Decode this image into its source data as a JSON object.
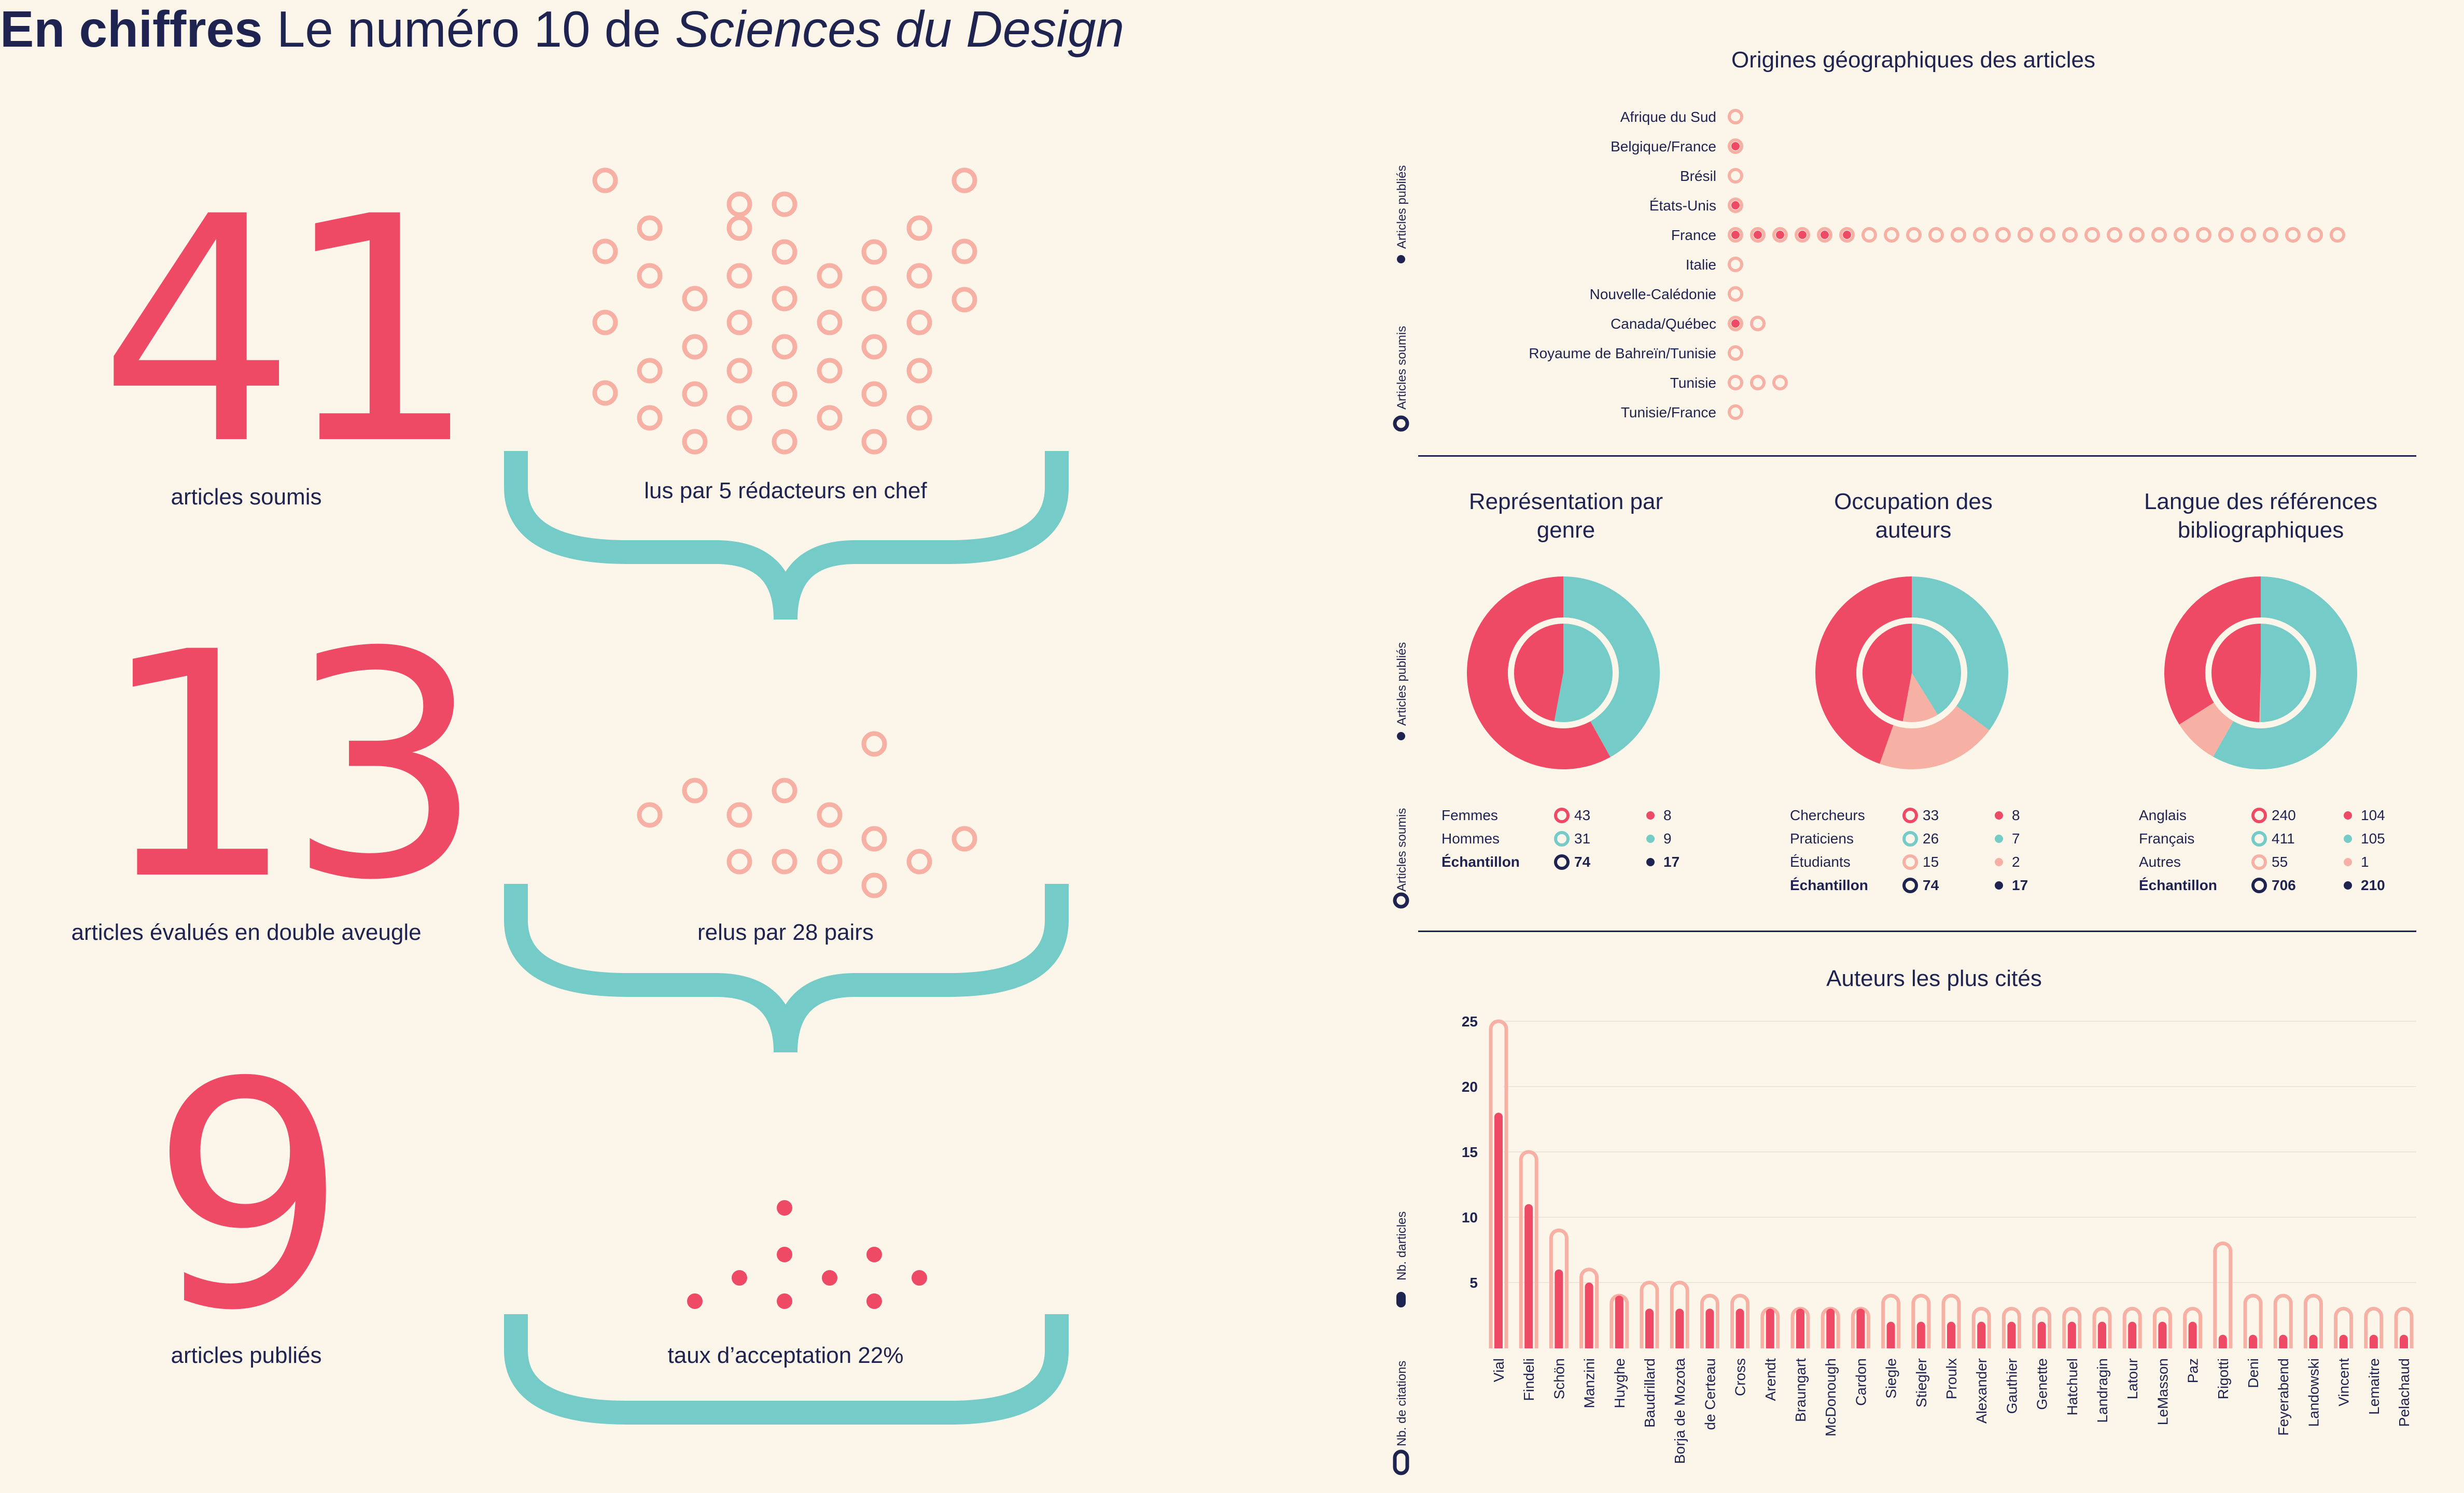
{
  "colors": {
    "bg": "#fcf6ea",
    "red": "#ee4a66",
    "pink": "#f6b1a4",
    "teal": "#74cbc7",
    "navy": "#1f2350"
  },
  "title": {
    "bold": "En chiffres",
    "plain": "Le numéro 10 de",
    "italic": "Sciences du Design"
  },
  "funnel": [
    {
      "number": "41",
      "caption": "articles soumis",
      "brace_caption": "lus par 5 rédacteurs en chef"
    },
    {
      "number": "13",
      "caption": "articles évalués en double aveugle",
      "brace_caption": "relus par 28 pairs"
    },
    {
      "number": "9",
      "caption": "articles publiés",
      "brace_caption": "taux d’acceptation 22%"
    }
  ],
  "side_labels": {
    "published": "Articles publiés",
    "submitted": "Articles soumis",
    "nb_articles": "Nb. darticles",
    "nb_citations": "Nb. de citations"
  },
  "chart_data": [
    {
      "type": "scatter",
      "title": "Origines géographiques des articles",
      "categories": [
        "Afrique du Sud",
        "Belgique/France",
        "Brésil",
        "États-Unis",
        "France",
        "Italie",
        "Nouvelle-Calédonie",
        "Canada/Québec",
        "Royaume de Bahreïn/Tunisie",
        "Tunisie",
        "Tunisie/France"
      ],
      "series": [
        {
          "name": "Articles soumis",
          "values": [
            1,
            1,
            1,
            1,
            28,
            1,
            1,
            2,
            1,
            3,
            1
          ]
        },
        {
          "name": "Articles publiés",
          "values": [
            0,
            1,
            0,
            1,
            6,
            0,
            0,
            1,
            0,
            0,
            0
          ]
        }
      ]
    },
    {
      "type": "pie",
      "title": "Représentation par genre",
      "rows": [
        {
          "label": "Femmes",
          "submitted": "43",
          "published": "8",
          "color": "red"
        },
        {
          "label": "Hommes",
          "submitted": "31",
          "published": "9",
          "color": "teal"
        },
        {
          "label": "Échantillon",
          "submitted": "74",
          "published": "17",
          "color": "navy",
          "bold": true
        }
      ]
    },
    {
      "type": "pie",
      "title": "Occupation des auteurs",
      "rows": [
        {
          "label": "Chercheurs",
          "submitted": "33",
          "published": "8",
          "color": "red"
        },
        {
          "label": "Praticiens",
          "submitted": "26",
          "published": "7",
          "color": "teal"
        },
        {
          "label": "Étudiants",
          "submitted": "15",
          "published": "2",
          "color": "pink"
        },
        {
          "label": "Échantillon",
          "submitted": "74",
          "published": "17",
          "color": "navy",
          "bold": true
        }
      ]
    },
    {
      "type": "pie",
      "title": "Langue des références bibliographiques",
      "rows": [
        {
          "label": "Anglais",
          "submitted": "240",
          "published": "104",
          "color": "red"
        },
        {
          "label": "Français",
          "submitted": "411",
          "published": "105",
          "color": "teal"
        },
        {
          "label": "Autres",
          "submitted": "55",
          "published": "1",
          "color": "pink"
        },
        {
          "label": "Échantillon",
          "submitted": "706",
          "published": "210",
          "color": "navy",
          "bold": true
        }
      ]
    },
    {
      "type": "bar",
      "title": "Auteurs les plus cités",
      "ylim": [
        0,
        25
      ],
      "yticks": [
        "5",
        "10",
        "15",
        "20",
        "25"
      ],
      "categories": [
        "Vial",
        "Findeli",
        "Schön",
        "Manzini",
        "Huyghe",
        "Baudrillard",
        "Borja de Mozota",
        "de Certeau",
        "Cross",
        "Arendt",
        "Braungart",
        "McDonough",
        "Cardon",
        "Siegle",
        "Stiegler",
        "Proulx",
        "Alexander",
        "Gauthier",
        "Genette",
        "Hatchuel",
        "Landragin",
        "Latour",
        "LeMasson",
        "Paz",
        "Rigotti",
        "Deni",
        "Feyerabend",
        "Landowski",
        "Vincent",
        "Lemaitre",
        "Pelachaud"
      ],
      "series": [
        {
          "name": "Nb. de citations",
          "values": [
            25,
            15,
            9,
            6,
            4,
            5,
            5,
            4,
            4,
            3,
            3,
            3,
            3,
            4,
            4,
            4,
            3,
            3,
            3,
            3,
            3,
            3,
            3,
            3,
            8,
            4,
            4,
            4,
            3,
            3,
            3
          ]
        },
        {
          "name": "Nb. darticles",
          "values": [
            18,
            11,
            6,
            5,
            4,
            3,
            3,
            3,
            3,
            3,
            3,
            3,
            3,
            2,
            2,
            2,
            2,
            2,
            2,
            2,
            2,
            2,
            2,
            2,
            1,
            1,
            1,
            1,
            1,
            1,
            1
          ]
        }
      ]
    }
  ]
}
